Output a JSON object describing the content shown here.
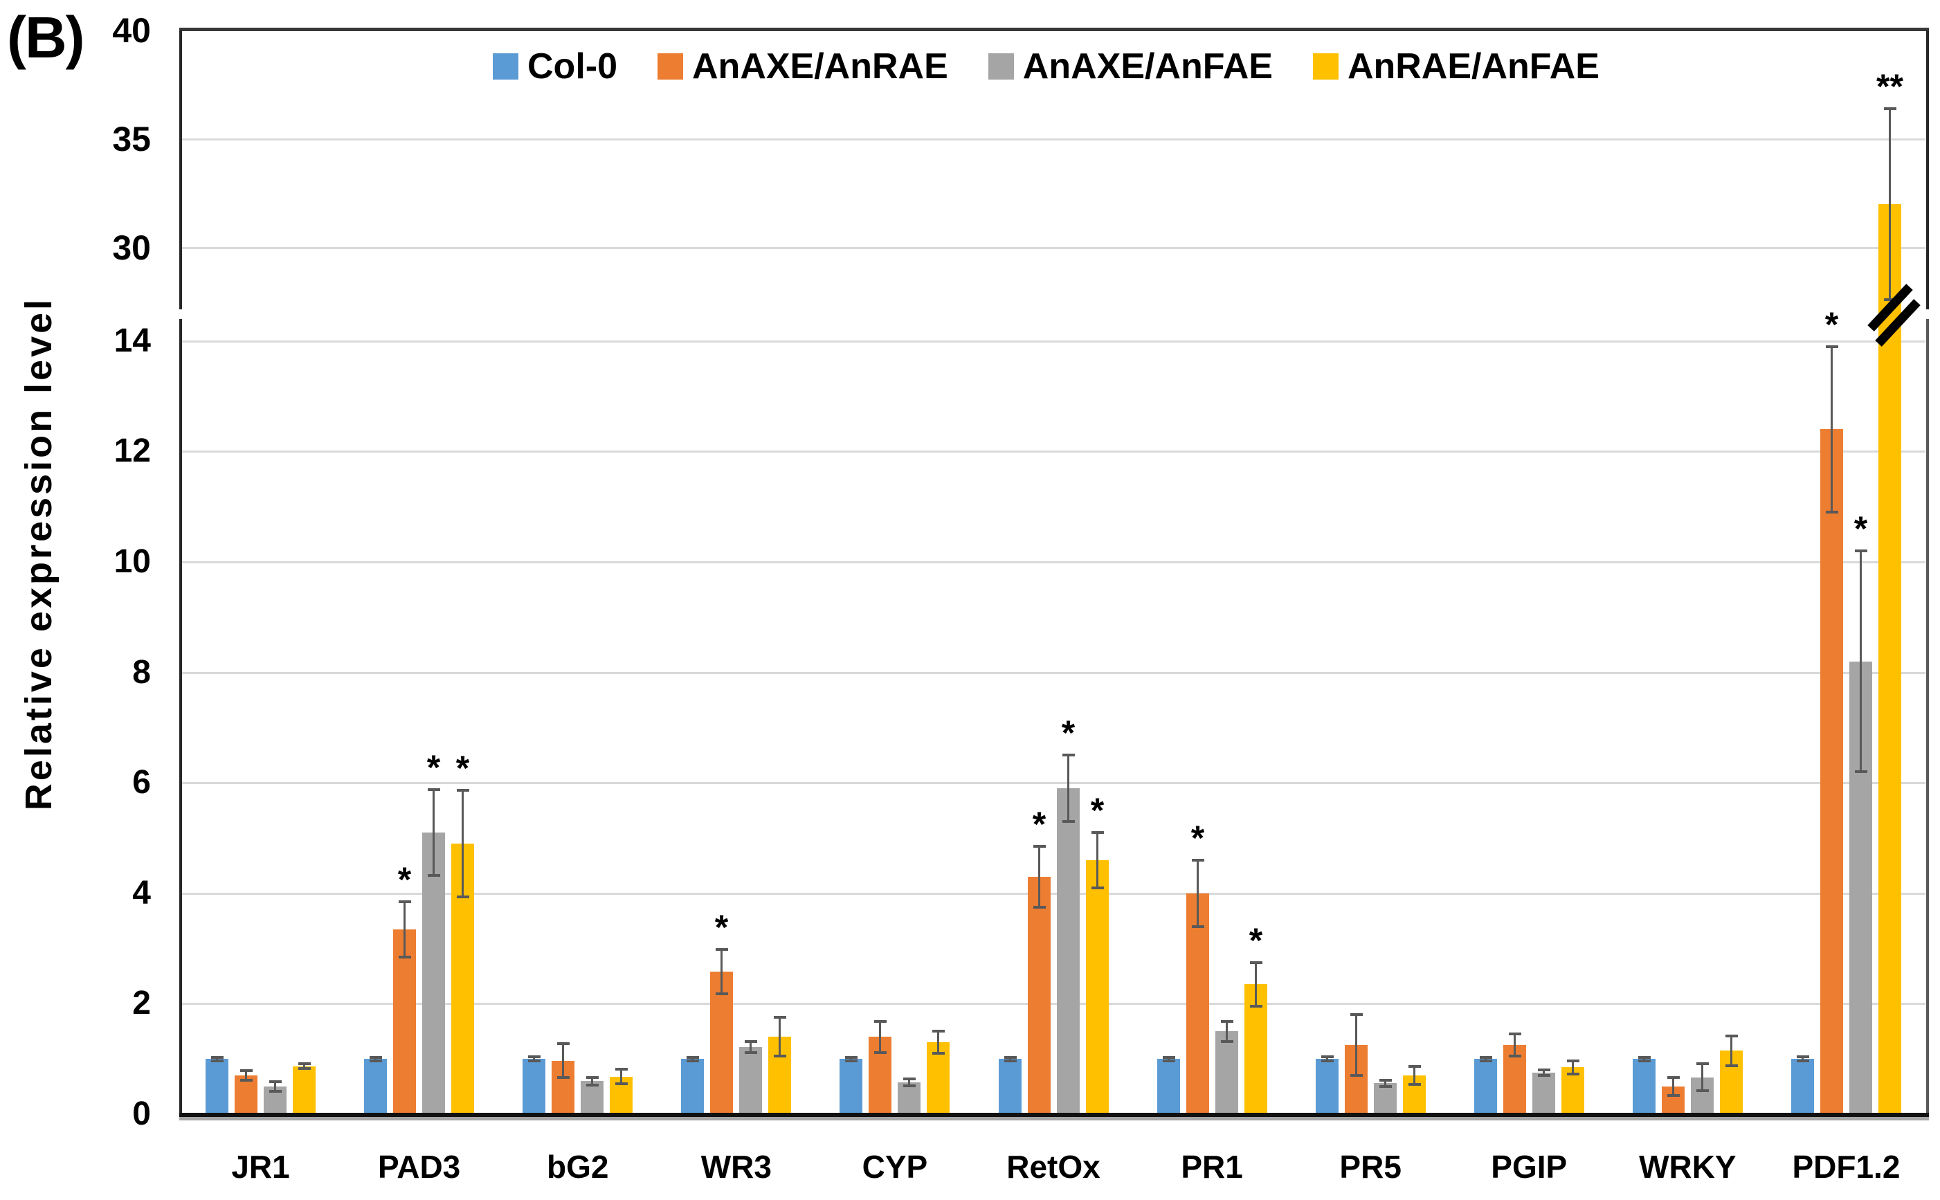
{
  "panel_label": "(B)",
  "y_axis_title": "Relative expression level",
  "legend": [
    {
      "label": "Col-0",
      "color": "#5B9BD5",
      "icon": "legend-swatch-blue"
    },
    {
      "label": "AnAXE/AnRAE",
      "color": "#ED7D31",
      "icon": "legend-swatch-orange"
    },
    {
      "label": "AnAXE/AnFAE",
      "color": "#A5A5A5",
      "icon": "legend-swatch-gray"
    },
    {
      "label": "AnRAE/AnFAE",
      "color": "#FFC000",
      "icon": "legend-swatch-yellow"
    }
  ],
  "colors": {
    "error_bar": "#595959",
    "gridline": "#D9D9D9",
    "axis": "#262626",
    "baseline": "#111111",
    "baseline_shadow": "#A6A6A6",
    "break_symbol": "#000000"
  },
  "chart_data": {
    "type": "bar",
    "title": "",
    "xlabel": "",
    "ylabel": "Relative expression level",
    "grid": "horizontal",
    "legend_position": "top-inside",
    "categories": [
      "JR1",
      "PAD3",
      "bG2",
      "WR3",
      "CYP",
      "RetOx",
      "PR1",
      "PR5",
      "PGIP",
      "WRKY",
      "PDF1.2"
    ],
    "upper_axis_ticks": [
      40,
      35,
      30
    ],
    "lower_axis_ticks": [
      14,
      12,
      10,
      8,
      6,
      4,
      2,
      0
    ],
    "axis_break": {
      "lower_panel_range": [
        0,
        14.4
      ],
      "upper_panel_range": [
        27.2,
        40
      ],
      "broken_series": "AnRAE/AnFAE",
      "broken_category": "PDF1.2",
      "symbol": "//"
    },
    "series": [
      {
        "name": "Col-0",
        "color": "#5B9BD5",
        "values": [
          1.0,
          1.0,
          1.0,
          1.0,
          1.0,
          1.0,
          1.0,
          1.0,
          1.0,
          1.0,
          1.0
        ],
        "errors": [
          0.03,
          0.03,
          0.04,
          0.03,
          0.03,
          0.03,
          0.03,
          0.04,
          0.03,
          0.03,
          0.04
        ],
        "significance": [
          "",
          "",
          "",
          "",
          "",
          "",
          "",
          "",
          "",
          "",
          ""
        ]
      },
      {
        "name": "AnAXE/AnRAE",
        "color": "#ED7D31",
        "values": [
          0.7,
          3.35,
          0.97,
          2.58,
          1.4,
          4.3,
          4.0,
          1.25,
          1.25,
          0.5,
          12.4
        ],
        "errors": [
          0.09,
          0.5,
          0.31,
          0.4,
          0.28,
          0.55,
          0.6,
          0.55,
          0.2,
          0.16,
          1.5
        ],
        "significance": [
          "",
          "*",
          "",
          "*",
          "",
          "*",
          "*",
          "",
          "",
          "",
          "*"
        ]
      },
      {
        "name": "AnAXE/AnFAE",
        "color": "#A5A5A5",
        "values": [
          0.5,
          5.1,
          0.6,
          1.22,
          0.58,
          5.9,
          1.5,
          0.56,
          0.75,
          0.67,
          8.2
        ],
        "errors": [
          0.09,
          0.78,
          0.07,
          0.1,
          0.06,
          0.6,
          0.18,
          0.06,
          0.05,
          0.25,
          2.0
        ],
        "significance": [
          "",
          "*",
          "",
          "",
          "",
          "*",
          "",
          "",
          "",
          "",
          "*"
        ]
      },
      {
        "name": "AnRAE/AnFAE",
        "color": "#FFC000",
        "values": [
          0.87,
          4.9,
          0.68,
          1.4,
          1.3,
          4.6,
          2.35,
          0.7,
          0.85,
          1.15,
          32.0
        ],
        "errors": [
          0.04,
          0.97,
          0.13,
          0.35,
          0.2,
          0.5,
          0.4,
          0.16,
          0.12,
          0.27,
          4.4
        ],
        "significance": [
          "",
          "*",
          "",
          "",
          "",
          "*",
          "*",
          "",
          "",
          "",
          "**"
        ]
      }
    ]
  }
}
